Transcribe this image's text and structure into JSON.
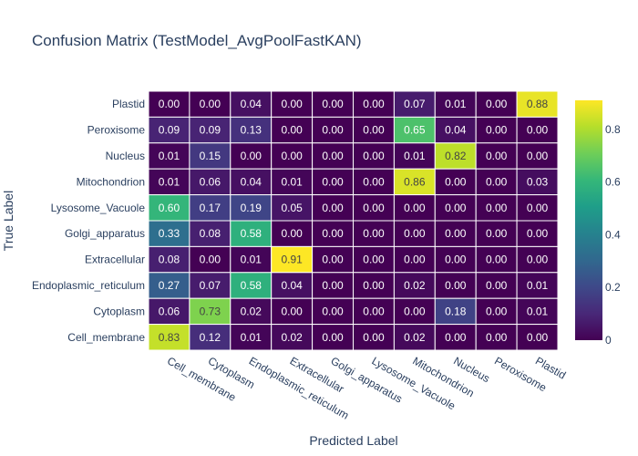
{
  "chart_data": {
    "type": "heatmap",
    "title": "Confusion Matrix (TestModel_AvgPoolFastKAN)",
    "xlabel": "Predicted Label",
    "ylabel": "True Label",
    "x_categories": [
      "Cell_membrane",
      "Cytoplasm",
      "Endoplasmic_reticulum",
      "Extracellular",
      "Golgi_apparatus",
      "Lysosome_Vacuole",
      "Mitochondrion",
      "Nucleus",
      "Peroxisome",
      "Plastid"
    ],
    "y_categories_top_to_bottom": [
      "Plastid",
      "Peroxisome",
      "Nucleus",
      "Mitochondrion",
      "Lysosome_Vacuole",
      "Golgi_apparatus",
      "Extracellular",
      "Endoplasmic_reticulum",
      "Cytoplasm",
      "Cell_membrane"
    ],
    "values": [
      [
        "0.00",
        "0.00",
        "0.04",
        "0.00",
        "0.00",
        "0.00",
        "0.07",
        "0.01",
        "0.00",
        "0.88"
      ],
      [
        "0.09",
        "0.09",
        "0.13",
        "0.00",
        "0.00",
        "0.00",
        "0.65",
        "0.04",
        "0.00",
        "0.00"
      ],
      [
        "0.01",
        "0.15",
        "0.00",
        "0.00",
        "0.00",
        "0.00",
        "0.01",
        "0.82",
        "0.00",
        "0.00"
      ],
      [
        "0.01",
        "0.06",
        "0.04",
        "0.01",
        "0.00",
        "0.00",
        "0.86",
        "0.00",
        "0.00",
        "0.03"
      ],
      [
        "0.60",
        "0.17",
        "0.19",
        "0.05",
        "0.00",
        "0.00",
        "0.00",
        "0.00",
        "0.00",
        "0.00"
      ],
      [
        "0.33",
        "0.08",
        "0.58",
        "0.00",
        "0.00",
        "0.00",
        "0.00",
        "0.00",
        "0.00",
        "0.00"
      ],
      [
        "0.08",
        "0.00",
        "0.01",
        "0.91",
        "0.00",
        "0.00",
        "0.00",
        "0.00",
        "0.00",
        "0.00"
      ],
      [
        "0.27",
        "0.07",
        "0.58",
        "0.04",
        "0.00",
        "0.00",
        "0.02",
        "0.00",
        "0.00",
        "0.01"
      ],
      [
        "0.06",
        "0.73",
        "0.02",
        "0.00",
        "0.00",
        "0.00",
        "0.00",
        "0.18",
        "0.00",
        "0.01"
      ],
      [
        "0.83",
        "0.12",
        "0.01",
        "0.02",
        "0.00",
        "0.00",
        "0.02",
        "0.00",
        "0.00",
        "0.00"
      ]
    ],
    "zmin": 0,
    "zmax": 0.91,
    "colorscale": "viridis",
    "colorbar_ticks": [
      0,
      0.2,
      0.4,
      0.6,
      0.8
    ],
    "colorbar_tick_labels": [
      "0",
      "0.2",
      "0.4",
      "0.6",
      "0.8"
    ]
  }
}
